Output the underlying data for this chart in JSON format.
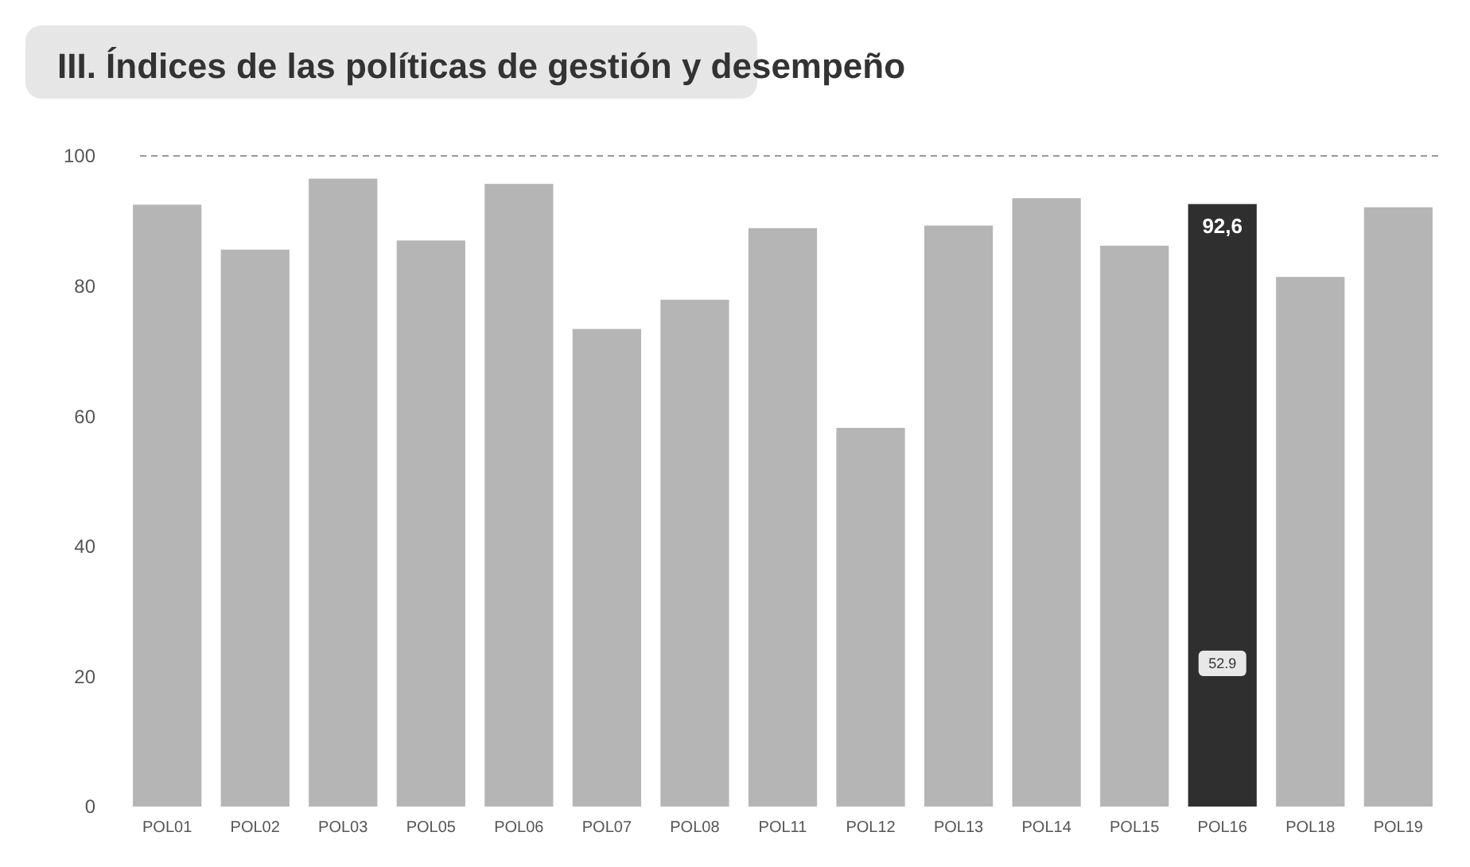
{
  "chart_data": {
    "type": "bar",
    "title": "III. Índices de las políticas de gestión y desempeño",
    "categories": [
      "POL01",
      "POL02",
      "POL03",
      "POL05",
      "POL06",
      "POL07",
      "POL08",
      "POL11",
      "POL12",
      "POL13",
      "POL14",
      "POL15",
      "POL16",
      "POL18",
      "POL19"
    ],
    "values": [
      92.5,
      85.6,
      96.5,
      87.0,
      95.7,
      73.4,
      77.9,
      88.9,
      58.2,
      89.3,
      93.5,
      86.2,
      92.6,
      81.4,
      92.1
    ],
    "colors": [
      "#b5b5b5",
      "#b5b5b5",
      "#b5b5b5",
      "#b5b5b5",
      "#b5b5b5",
      "#b5b5b5",
      "#b5b5b5",
      "#b5b5b5",
      "#b5b5b5",
      "#b5b5b5",
      "#b5b5b5",
      "#b5b5b5",
      "#2f2f2f",
      "#b5b5b5",
      "#b5b5b5"
    ],
    "value_labels": [
      null,
      null,
      null,
      null,
      null,
      null,
      null,
      null,
      null,
      null,
      null,
      null,
      "92,6",
      null,
      null
    ],
    "annotations": [
      {
        "text": "52.9",
        "x": "POL16",
        "y": 22
      }
    ],
    "ref_lines": [
      {
        "axis": "y",
        "value": 100,
        "color": "#999999",
        "line_style": "dashed"
      }
    ],
    "ylim": [
      0,
      100
    ],
    "yticks": [
      0,
      20,
      40,
      60,
      80,
      100
    ],
    "grid": false
  }
}
